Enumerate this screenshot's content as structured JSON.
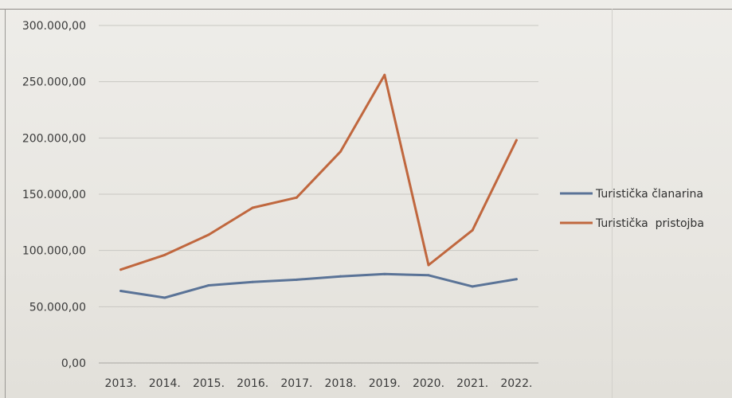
{
  "chart_data": {
    "type": "line",
    "title": "",
    "xlabel": "",
    "ylabel": "",
    "categories": [
      "2013.",
      "2014.",
      "2015.",
      "2016.",
      "2017.",
      "2018.",
      "2019.",
      "2020.",
      "2021.",
      "2022."
    ],
    "series": [
      {
        "name": "Turistička članarina",
        "color": "#5a7397",
        "values": [
          64000,
          58000,
          69000,
          72000,
          74000,
          77000,
          79000,
          78000,
          68000,
          74500
        ]
      },
      {
        "name": "Turistička  pristojba",
        "color": "#c0673e",
        "values": [
          83000,
          96000,
          114000,
          138000,
          147000,
          188000,
          256000,
          87000,
          118000,
          198000
        ]
      }
    ],
    "ylim": [
      0,
      300000
    ],
    "yticks": [
      "0,00",
      "50.000,00",
      "100.000,00",
      "150.000,00",
      "200.000,00",
      "250.000,00",
      "300.000,00"
    ],
    "grid": true,
    "legend_position": "right"
  }
}
